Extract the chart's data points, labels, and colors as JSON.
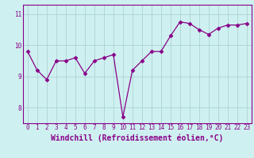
{
  "x": [
    0,
    1,
    2,
    3,
    4,
    5,
    6,
    7,
    8,
    9,
    10,
    11,
    12,
    13,
    14,
    15,
    16,
    17,
    18,
    19,
    20,
    21,
    22,
    23
  ],
  "y": [
    9.8,
    9.2,
    8.9,
    9.5,
    9.5,
    9.6,
    9.1,
    9.5,
    9.6,
    9.7,
    7.7,
    9.2,
    9.5,
    9.8,
    9.8,
    10.3,
    10.75,
    10.7,
    10.5,
    10.35,
    10.55,
    10.65,
    10.65,
    10.7
  ],
  "line_color": "#880088",
  "marker": "D",
  "markersize": 2.5,
  "linewidth": 0.9,
  "xlabel": "Windchill (Refroidissement éolien,°C)",
  "xlabel_fontsize": 7,
  "ylim": [
    7.5,
    11.3
  ],
  "xlim": [
    -0.5,
    23.5
  ],
  "yticks": [
    8,
    9,
    10,
    11
  ],
  "xticks": [
    0,
    1,
    2,
    3,
    4,
    5,
    6,
    7,
    8,
    9,
    10,
    11,
    12,
    13,
    14,
    15,
    16,
    17,
    18,
    19,
    20,
    21,
    22,
    23
  ],
  "bg_color": "#cff0f0",
  "grid_color": "#b0d8d8",
  "tick_fontsize": 5.5
}
